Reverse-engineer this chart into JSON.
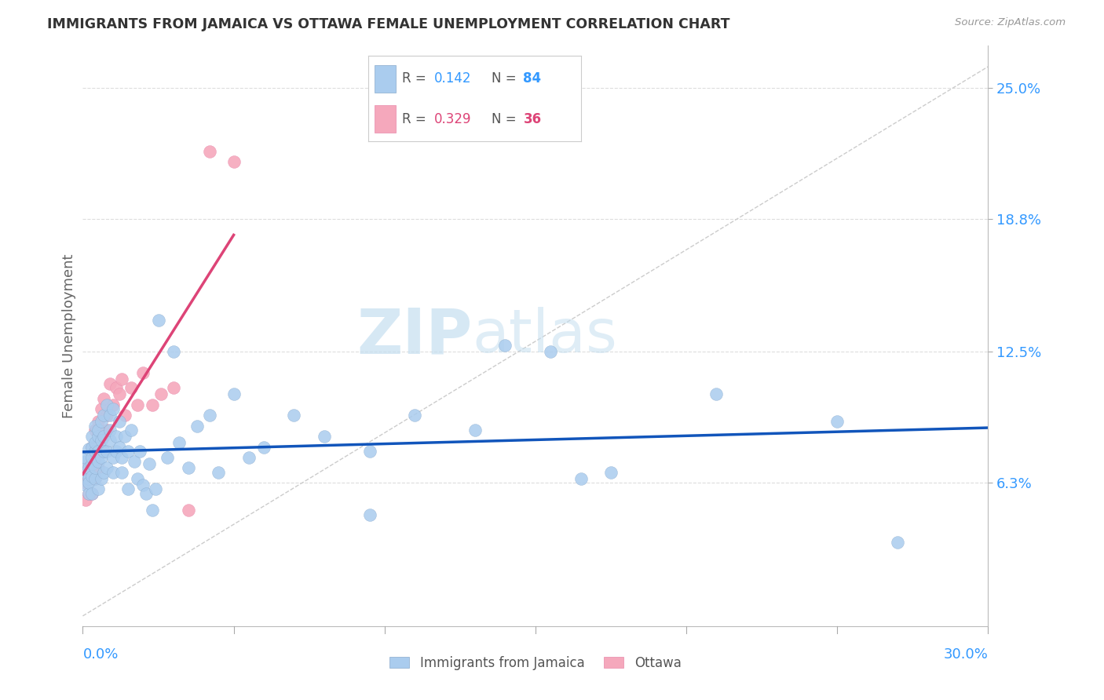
{
  "title": "IMMIGRANTS FROM JAMAICA VS OTTAWA FEMALE UNEMPLOYMENT CORRELATION CHART",
  "source": "Source: ZipAtlas.com",
  "ylabel": "Female Unemployment",
  "yticks": [
    0.063,
    0.125,
    0.188,
    0.25
  ],
  "ytick_labels": [
    "6.3%",
    "12.5%",
    "18.8%",
    "25.0%"
  ],
  "xlim": [
    0.0,
    0.3
  ],
  "ylim": [
    -0.005,
    0.27
  ],
  "color_jamaica": "#aaccee",
  "color_ottawa": "#f5a8bc",
  "watermark_color": "#d8edf8",
  "background_color": "#ffffff",
  "grid_color": "#dddddd",
  "jamaica_trend_color": "#1155bb",
  "ottawa_trend_color": "#dd4477",
  "diag_color": "#cccccc",
  "jamaica_x": [
    0.001,
    0.001,
    0.001,
    0.001,
    0.002,
    0.002,
    0.002,
    0.002,
    0.002,
    0.003,
    0.003,
    0.003,
    0.003,
    0.003,
    0.003,
    0.004,
    0.004,
    0.004,
    0.004,
    0.004,
    0.005,
    0.005,
    0.005,
    0.005,
    0.005,
    0.006,
    0.006,
    0.006,
    0.006,
    0.007,
    0.007,
    0.007,
    0.007,
    0.008,
    0.008,
    0.008,
    0.009,
    0.009,
    0.009,
    0.01,
    0.01,
    0.01,
    0.011,
    0.011,
    0.012,
    0.012,
    0.013,
    0.013,
    0.014,
    0.015,
    0.015,
    0.016,
    0.017,
    0.018,
    0.019,
    0.02,
    0.021,
    0.022,
    0.023,
    0.024,
    0.025,
    0.028,
    0.03,
    0.032,
    0.035,
    0.038,
    0.042,
    0.045,
    0.05,
    0.055,
    0.06,
    0.07,
    0.08,
    0.095,
    0.11,
    0.13,
    0.155,
    0.175,
    0.21,
    0.25,
    0.14,
    0.165,
    0.095,
    0.27
  ],
  "jamaica_y": [
    0.073,
    0.068,
    0.062,
    0.075,
    0.065,
    0.07,
    0.058,
    0.079,
    0.063,
    0.08,
    0.072,
    0.066,
    0.058,
    0.075,
    0.085,
    0.09,
    0.078,
    0.065,
    0.07,
    0.082,
    0.073,
    0.078,
    0.085,
    0.06,
    0.088,
    0.092,
    0.075,
    0.065,
    0.083,
    0.095,
    0.078,
    0.068,
    0.085,
    0.1,
    0.078,
    0.07,
    0.095,
    0.083,
    0.088,
    0.098,
    0.075,
    0.068,
    0.085,
    0.078,
    0.092,
    0.08,
    0.075,
    0.068,
    0.085,
    0.078,
    0.06,
    0.088,
    0.073,
    0.065,
    0.078,
    0.062,
    0.058,
    0.072,
    0.05,
    0.06,
    0.14,
    0.075,
    0.125,
    0.082,
    0.07,
    0.09,
    0.095,
    0.068,
    0.105,
    0.075,
    0.08,
    0.095,
    0.085,
    0.078,
    0.095,
    0.088,
    0.125,
    0.068,
    0.105,
    0.092,
    0.128,
    0.065,
    0.048,
    0.035
  ],
  "ottawa_x": [
    0.001,
    0.001,
    0.001,
    0.002,
    0.002,
    0.002,
    0.003,
    0.003,
    0.003,
    0.004,
    0.004,
    0.004,
    0.005,
    0.005,
    0.005,
    0.006,
    0.006,
    0.007,
    0.007,
    0.008,
    0.008,
    0.009,
    0.01,
    0.011,
    0.012,
    0.013,
    0.014,
    0.016,
    0.018,
    0.02,
    0.023,
    0.026,
    0.03,
    0.035,
    0.042,
    0.05
  ],
  "ottawa_y": [
    0.063,
    0.07,
    0.055,
    0.072,
    0.065,
    0.058,
    0.08,
    0.068,
    0.058,
    0.088,
    0.075,
    0.065,
    0.092,
    0.08,
    0.07,
    0.098,
    0.085,
    0.103,
    0.078,
    0.095,
    0.088,
    0.11,
    0.1,
    0.108,
    0.105,
    0.112,
    0.095,
    0.108,
    0.1,
    0.115,
    0.1,
    0.105,
    0.108,
    0.05,
    0.22,
    0.215
  ]
}
